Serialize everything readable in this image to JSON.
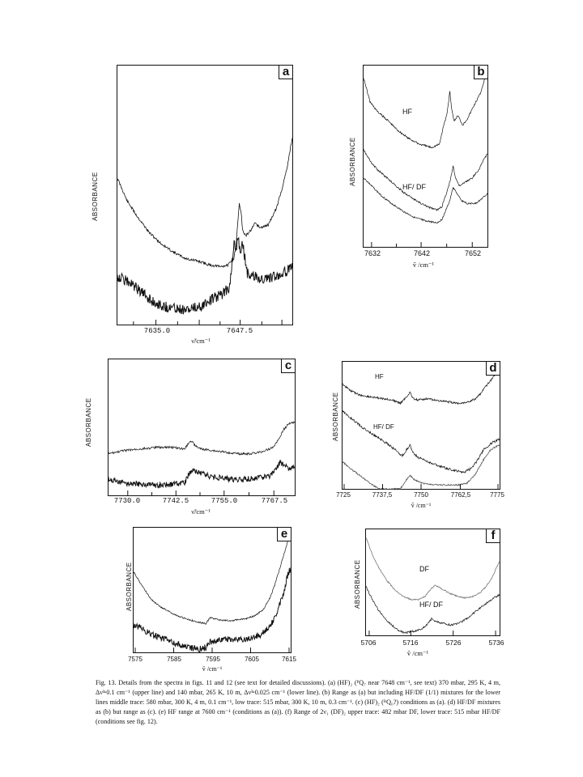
{
  "figure": {
    "caption": "Fig. 13. Details from the spectra in figs. 11 and 12 (see text for detailed discussions). (a) (HF)₂ (ᴾQ₇ near 7648 cm⁻¹, see text) 370 mbar, 295 K, 4 m, Δν̃=0.1 cm⁻¹ (upper line) and 140 mbar, 265 K, 10 m, Δν̃=0.025 cm⁻¹ (lower line). (b) Range as (a) but including HF/DF (1/1) mixtures for the lower lines middle trace: 580 mbar, 300 K, 4 m, 0.1 cm⁻¹, low trace: 515 mbar, 300 K, 10 m, 0.3 cm⁻¹. (c) (HF)₂ (ᴿQ₀?) conditions as (a). (d) HF/DF mixtures as (b) but range as (c). (e) HF range at 7600 cm⁻¹ (conditions as (a)). (f) Range of 2ν₁ (DF)₂ upper trace: 482 mbar DF, lower trace: 515 mbar HF/DF (conditions see fig. 12)."
  },
  "panels": {
    "a": {
      "letter": "a",
      "ylabel": "ABSORBANCE",
      "xlabel": "ν̃/cm⁻¹",
      "ticks": [
        "7635.0",
        "7647.5"
      ]
    },
    "b": {
      "letter": "b",
      "ylabel": "ABSORBANCE",
      "xlabel": "ṽ /cm⁻¹",
      "ticks": [
        "7632",
        "7642",
        "7652"
      ],
      "labels": [
        "HF",
        "HF/ DF"
      ]
    },
    "c": {
      "letter": "c",
      "ylabel": "ABSORBANCE",
      "xlabel": "ν̃/cm⁻¹",
      "ticks": [
        "7730.0",
        "7742.5",
        "7755.0",
        "7767.5"
      ]
    },
    "d": {
      "letter": "d",
      "ylabel": "ABSORBANCE",
      "xlabel": "ṽ /cm⁻¹",
      "ticks": [
        "7725",
        "7737,5",
        "7750",
        "7762,5",
        "7775"
      ],
      "labels": [
        "HF",
        "HF/ DF"
      ]
    },
    "e": {
      "letter": "e",
      "ylabel": "ABSORBANCE",
      "xlabel": "ṽ /cm⁻¹",
      "ticks": [
        "7575",
        "7585",
        "7595",
        "7605",
        "7615"
      ]
    },
    "f": {
      "letter": "f",
      "ylabel": "ABSORBANCE",
      "xlabel": "ṽ /cm⁻¹",
      "ticks": [
        "5706",
        "5716",
        "5726",
        "5736"
      ],
      "labels": [
        "DF",
        "HF/ DF"
      ]
    }
  }
}
